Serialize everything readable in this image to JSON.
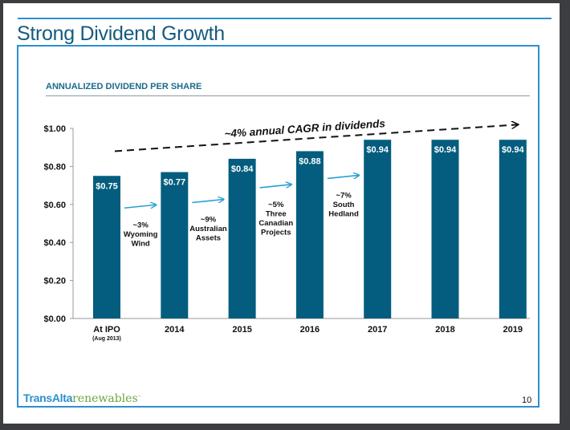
{
  "slide": {
    "title": "Strong Dividend Growth",
    "subtitle": "ANNUALIZED DIVIDEND PER SHARE",
    "page_number": "10",
    "logo": {
      "part1": "TransAlta",
      "part2": "renewables",
      "tm": "™"
    }
  },
  "colors": {
    "bar": "#045d7e",
    "arrow": "#2a9fd6",
    "accent": "#2f8fd0",
    "title": "#155b7f"
  },
  "chart_data": {
    "type": "bar",
    "title": "ANNUALIZED DIVIDEND PER SHARE",
    "xlabel": "",
    "ylabel": "",
    "categories": [
      "At IPO",
      "2014",
      "2015",
      "2016",
      "2017",
      "2018",
      "2019"
    ],
    "category_sublabels": [
      "(Aug 2013)",
      "",
      "",
      "",
      "",
      "",
      ""
    ],
    "values": [
      0.75,
      0.77,
      0.84,
      0.88,
      0.94,
      0.94,
      0.94
    ],
    "data_labels": [
      "$0.75",
      "$0.77",
      "$0.84",
      "$0.88",
      "$0.94",
      "$0.94",
      "$0.94"
    ],
    "ylim": [
      0,
      1.0
    ],
    "yticks": [
      0,
      0.2,
      0.4,
      0.6,
      0.8,
      1.0
    ],
    "ytick_labels": [
      "$0.00",
      "$0.20",
      "$0.40",
      "$0.60",
      "$0.80",
      "$1.00"
    ],
    "grid": false,
    "legend": "none",
    "trend_annotation": {
      "text": "~4% annual CAGR in dividends",
      "from_value": 0.88,
      "to_value": 1.02,
      "style": "dashed-arrow"
    },
    "growth_annotations": [
      {
        "between": [
          0,
          1
        ],
        "lines": [
          "~3%",
          "Wyoming",
          "Wind"
        ]
      },
      {
        "between": [
          1,
          2
        ],
        "lines": [
          "~9%",
          "Australian",
          "Assets"
        ]
      },
      {
        "between": [
          2,
          3
        ],
        "lines": [
          "~5%",
          "Three",
          "Canadian",
          "Projects"
        ]
      },
      {
        "between": [
          3,
          4
        ],
        "lines": [
          "~7%",
          "South",
          "Hedland"
        ]
      }
    ]
  }
}
